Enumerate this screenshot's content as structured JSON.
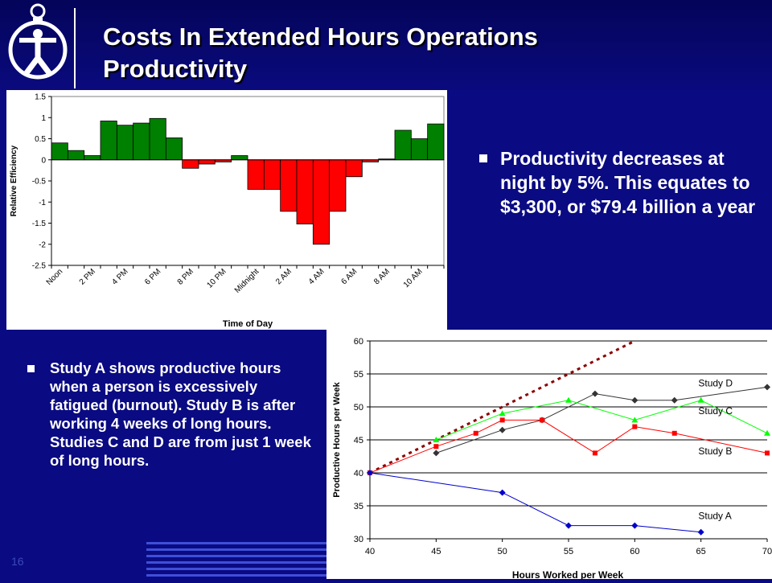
{
  "slide": {
    "title_lines": [
      "Costs In Extended Hours Operations",
      "Productivity"
    ],
    "number": "16",
    "bullets_right": [
      "Productivity decreases at night by 5%. This equates to $3,300, or $79.4 billion a year"
    ],
    "bullets_left": [
      "Study A shows productive hours when a person is excessively fatigued (burnout). Study B is after working 4 weeks of long hours. Studies C and D are from just 1 week of long hours."
    ],
    "colors": {
      "background": "#0a0a82",
      "positive_bar": "#008000",
      "negative_bar": "#ff0000"
    },
    "logo_icon": "person-figure-logo-icon"
  },
  "chart_data": [
    {
      "type": "bar",
      "xlabel": "Time of Day",
      "ylabel": "Relative Efficiency",
      "ylim": [
        -2.5,
        1.5
      ],
      "yticks": [
        "1.5",
        "1",
        "0.5",
        "0",
        "-0.5",
        "-1",
        "-1.5",
        "-2",
        "-2.5"
      ],
      "tick_labels": [
        "Noon",
        "2 PM",
        "4 PM",
        "6 PM",
        "8 PM",
        "10 PM",
        "Midnight",
        "2 AM",
        "4 AM",
        "6 AM",
        "8 AM",
        "10 AM"
      ],
      "values": [
        0.4,
        0.22,
        0.1,
        0.92,
        0.82,
        0.87,
        0.98,
        0.52,
        -0.2,
        -0.1,
        -0.05,
        0.1,
        -0.7,
        -0.7,
        -1.22,
        -1.52,
        -2.0,
        -1.22,
        -0.4,
        -0.05,
        0.02,
        0.7,
        0.5,
        0.85
      ],
      "grid": false
    },
    {
      "type": "line",
      "xlabel": "Hours Worked per Week",
      "ylabel": "Productive Hours per Week",
      "xlim": [
        40,
        70
      ],
      "ylim": [
        30,
        60
      ],
      "xticks": [
        "40",
        "45",
        "50",
        "55",
        "60",
        "65",
        "70"
      ],
      "yticks": [
        "60",
        "55",
        "50",
        "45",
        "40",
        "35",
        "30"
      ],
      "grid": true,
      "reference_line": {
        "x": [
          40,
          60
        ],
        "y": [
          40,
          60
        ],
        "style": "dashed",
        "color": "#8b0000"
      },
      "series": [
        {
          "name": "Study D",
          "color": "#333333",
          "marker": "diamond",
          "x": [
            45,
            50,
            53,
            57,
            60,
            63,
            70
          ],
          "y": [
            43,
            46.5,
            48,
            52,
            51,
            51,
            53
          ]
        },
        {
          "name": "Study C",
          "color": "#00ff00",
          "marker": "triangle",
          "x": [
            45,
            50,
            55,
            60,
            65,
            70
          ],
          "y": [
            45,
            49,
            51,
            48,
            51,
            46
          ]
        },
        {
          "name": "Study B",
          "color": "#ff0000",
          "marker": "square",
          "x": [
            40,
            45,
            48,
            50,
            53,
            57,
            60,
            63,
            70
          ],
          "y": [
            40,
            44,
            46,
            48,
            48,
            43,
            47,
            46,
            43
          ]
        },
        {
          "name": "Study A",
          "color": "#0000cc",
          "marker": "diamond",
          "x": [
            40,
            50,
            55,
            60,
            65
          ],
          "y": [
            40,
            37,
            32,
            32,
            31
          ]
        }
      ]
    }
  ]
}
